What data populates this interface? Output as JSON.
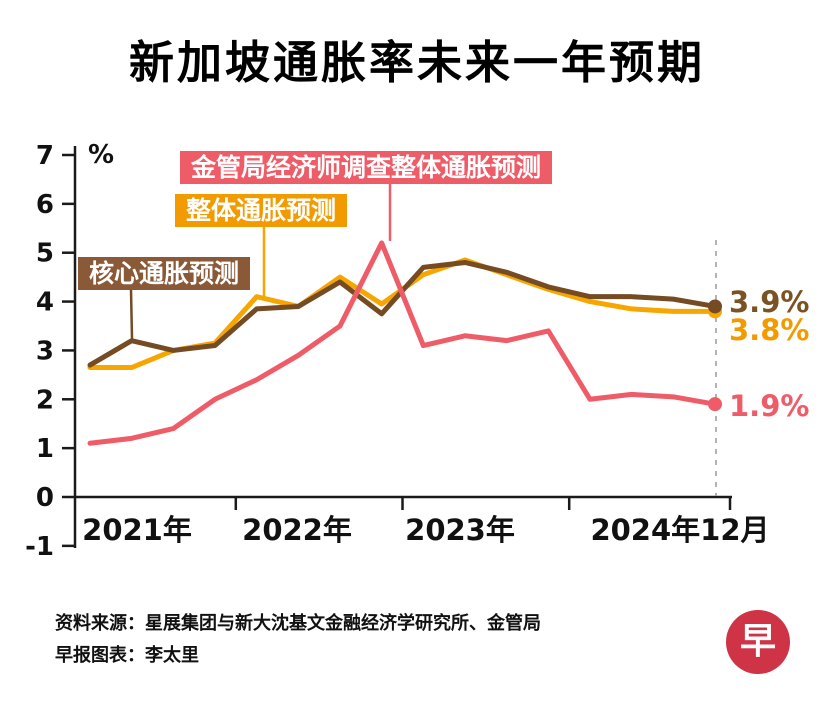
{
  "title": "新加坡通胀率未来一年预期",
  "chart_data": {
    "type": "line",
    "title": "新加坡通胀率未来一年预期",
    "xlabel": "",
    "ylabel": "%",
    "y_unit": "%",
    "ylim": [
      -1,
      7
    ],
    "y_ticks": [
      7,
      6,
      5,
      4,
      3,
      2,
      1,
      0,
      -1
    ],
    "x_labels": [
      "2021年",
      "2022年",
      "2023年",
      "2024年12月"
    ],
    "x_frequency": "quarterly",
    "grid": false,
    "legend_position": "inline-labels",
    "series": [
      {
        "name": "核心通胀预测",
        "color": "#744b22",
        "end_label": "3.9%",
        "values": [
          2.7,
          3.2,
          3.0,
          3.1,
          3.85,
          3.9,
          4.4,
          3.75,
          4.7,
          4.8,
          4.6,
          4.3,
          4.1,
          4.1,
          4.05,
          3.9
        ]
      },
      {
        "name": "整体通胀预测",
        "color": "#f7a600",
        "end_label": "3.8%",
        "values": [
          2.65,
          2.65,
          3.0,
          3.15,
          4.1,
          3.9,
          4.5,
          3.95,
          4.55,
          4.85,
          4.55,
          4.25,
          4.0,
          3.85,
          3.8,
          3.8
        ]
      },
      {
        "name": "金管局经济师调查整体通胀预测",
        "color": "#ee5c68",
        "end_label": "1.9%",
        "values": [
          1.1,
          1.2,
          1.4,
          2.0,
          2.4,
          2.9,
          3.5,
          5.2,
          3.1,
          3.3,
          3.2,
          3.4,
          2.0,
          2.1,
          2.05,
          1.9
        ]
      }
    ]
  },
  "annotations": {
    "survey_label": "金管局经济师调查整体通胀预测",
    "headline_label": "整体通胀预测",
    "core_label": "核心通胀预测",
    "end_values": {
      "core": "3.9%",
      "headline": "3.8%",
      "survey": "1.9%"
    }
  },
  "source_line1": "资料来源：星展集团与新大沈基文金融经济学研究所、金管局",
  "source_line2": "早报图表：李太里",
  "logo_text": "早",
  "colors": {
    "core_line": "#744b22",
    "core_box": "#8a5a38",
    "core_value_text": "#7b5222",
    "headline_line": "#f7a600",
    "headline_box": "#f29b00",
    "survey_line": "#ee5c68",
    "axis": "#1a1a1a",
    "dashed_guide": "#9a9a9a",
    "logo_bg": "#ce3346"
  }
}
